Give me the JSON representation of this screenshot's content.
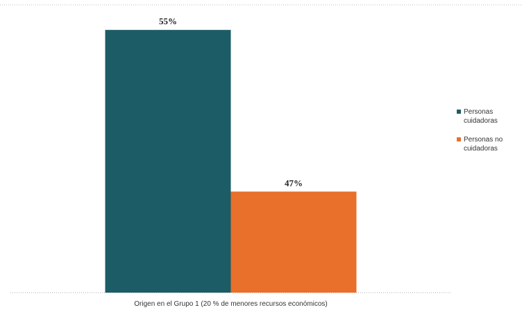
{
  "chart_data": {
    "type": "bar",
    "categories": [
      "Origen en el Grupo 1 (20 % de menores recursos económicos)"
    ],
    "series": [
      {
        "name": "Personas cuidadoras",
        "color": "#1c5c66",
        "values": [
          55
        ],
        "value_labels": [
          "55%"
        ]
      },
      {
        "name": "Personas no cuidadoras",
        "color": "#e8702a",
        "values": [
          47
        ],
        "value_labels": [
          "47%"
        ]
      }
    ],
    "ylim": [
      42,
      56
    ]
  }
}
